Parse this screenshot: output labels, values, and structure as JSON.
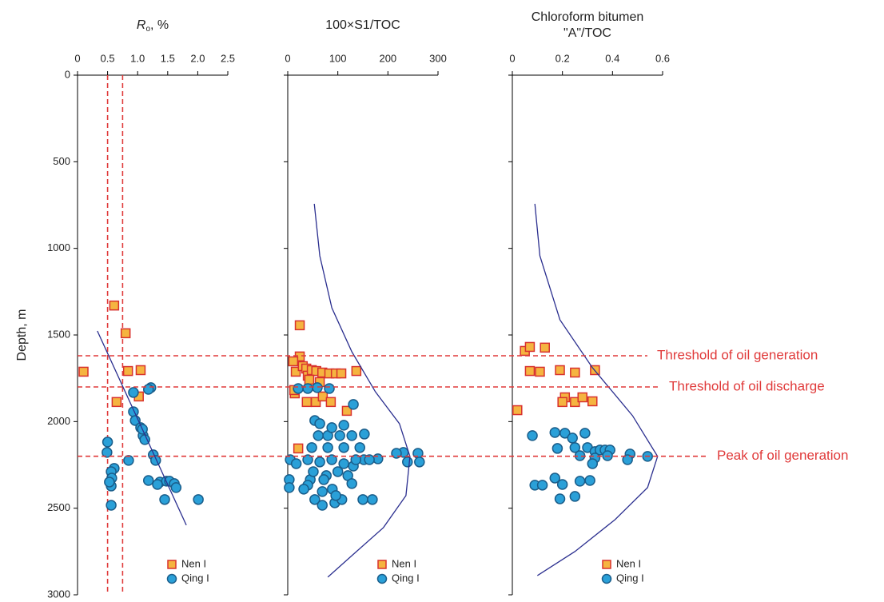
{
  "chart_data": [
    {
      "type": "scatter",
      "title": {
        "symbol": "R",
        "subscript": "o",
        "text": ", %"
      },
      "ylabel": "Depth, m",
      "show_ytick_labels": true,
      "xlim": [
        0,
        2.5
      ],
      "xticks": [
        0,
        0.5,
        {
          "value": 1,
          "label": "1.0"
        },
        1.5,
        {
          "value": 2,
          "label": "2.0"
        },
        2.5
      ],
      "ylim": [
        0,
        3000
      ],
      "yticks": [
        0,
        500,
        1000,
        1500,
        2000,
        2500,
        3000
      ],
      "y_inverted": true,
      "vlines": [
        0.5,
        0.75
      ],
      "series": [
        {
          "name": "Nen I",
          "style": "square",
          "color": "#f5b440",
          "edge": "#d8312d",
          "x": [
            0.61,
            0.8,
            0.1,
            0.84,
            1.05,
            0.65,
            1.02
          ],
          "values": [
            1330,
            1490,
            1712,
            1708,
            1703,
            1887,
            1855
          ]
        },
        {
          "name": "Qing I",
          "style": "circle",
          "color": "#2aa0d8",
          "edge": "#1a5d8a",
          "x": [
            0.93,
            1.22,
            1.18,
            0.93,
            0.96,
            1.05,
            1.09,
            1.12,
            1.08,
            0.5,
            0.49,
            1.26,
            1.3,
            0.85,
            0.61,
            0.56,
            0.57,
            0.56,
            0.53,
            1.18,
            1.37,
            1.48,
            1.53,
            1.61,
            1.64,
            1.33,
            1.45,
            2.01,
            0.56
          ],
          "values": [
            1832,
            1804,
            1814,
            1943,
            1994,
            2035,
            2081,
            2104,
            2044,
            2118,
            2178,
            2192,
            2224,
            2224,
            2270,
            2289,
            2326,
            2372,
            2349,
            2340,
            2349,
            2344,
            2344,
            2358,
            2381,
            2363,
            2450,
            2450,
            2483
          ]
        },
        {
          "style": "line",
          "color": "#2b2f8f",
          "x": [
            0.33,
            1.81
          ],
          "values": [
            1477,
            2598
          ]
        }
      ]
    },
    {
      "type": "scatter",
      "title": "100×S1/TOC",
      "show_ytick_labels": false,
      "xlim": [
        0,
        300
      ],
      "xticks": [
        0,
        100,
        200,
        300
      ],
      "ylim": [
        0,
        3000
      ],
      "yticks": [
        0,
        500,
        1000,
        1500,
        2000,
        2500,
        3000
      ],
      "y_inverted": true,
      "series": [
        {
          "name": "Nen I",
          "style": "square",
          "color": "#f5b440",
          "edge": "#d8312d",
          "x": [
            24,
            24,
            11,
            16,
            30,
            37,
            40,
            48,
            57,
            69,
            83,
            96,
            107,
            137,
            14,
            43,
            64,
            21,
            38,
            56,
            70,
            86,
            118,
            13
          ],
          "values": [
            1444,
            1624,
            1652,
            1712,
            1680,
            1694,
            1735,
            1703,
            1708,
            1717,
            1722,
            1722,
            1722,
            1708,
            1837,
            1758,
            1772,
            2155,
            1887,
            1887,
            1855,
            1887,
            1938,
            1818
          ]
        },
        {
          "name": "Qing I",
          "style": "circle",
          "color": "#2aa0d8",
          "edge": "#1a5d8a",
          "x": [
            21,
            40,
            59,
            83,
            131,
            54,
            153,
            231,
            217,
            260,
            263,
            239,
            180,
            5,
            3,
            3,
            17,
            45,
            69,
            54,
            94,
            69,
            89,
            108,
            150,
            169,
            152,
            131,
            120,
            61,
            80,
            104,
            128,
            48,
            80,
            112,
            144,
            40,
            64,
            88,
            112,
            51,
            77,
            100,
            40,
            128,
            72,
            32,
            96,
            136,
            163,
            64,
            88,
            112
          ],
          "values": [
            1809,
            1809,
            1804,
            1809,
            1901,
            1994,
            2072,
            2178,
            2183,
            2183,
            2233,
            2233,
            2215,
            2220,
            2335,
            2381,
            2243,
            2335,
            2404,
            2450,
            2469,
            2483,
            2390,
            2450,
            2450,
            2450,
            2220,
            2257,
            2312,
            2081,
            2081,
            2081,
            2081,
            2150,
            2150,
            2150,
            2150,
            2220,
            2233,
            2220,
            2243,
            2289,
            2312,
            2289,
            2367,
            2358,
            2335,
            2390,
            2427,
            2220,
            2220,
            2012,
            2035,
            2021
          ]
        },
        {
          "style": "line",
          "color": "#2b2f8f",
          "x": [
            53,
            64,
            88,
            128,
            175,
            223,
            244,
            236,
            191,
            128,
            80
          ],
          "values": [
            743,
            1043,
            1343,
            1597,
            1828,
            2012,
            2201,
            2427,
            2612,
            2774,
            2898
          ]
        }
      ]
    },
    {
      "type": "scatter",
      "title": [
        "Chloroform bitumen",
        "\"A\"/TOC"
      ],
      "show_ytick_labels": false,
      "xlim": [
        0,
        0.6
      ],
      "xticks": [
        0,
        0.2,
        0.4,
        0.6
      ],
      "ylim": [
        0,
        3000
      ],
      "yticks": [
        0,
        500,
        1000,
        1500,
        2000,
        2500,
        3000
      ],
      "y_inverted": true,
      "series": [
        {
          "name": "Nen I",
          "style": "square",
          "color": "#f5b440",
          "edge": "#d8312d",
          "x": [
            0.05,
            0.07,
            0.13,
            0.07,
            0.11,
            0.19,
            0.25,
            0.33,
            0.02,
            0.21,
            0.2,
            0.25,
            0.28,
            0.32
          ],
          "values": [
            1592,
            1569,
            1573,
            1708,
            1712,
            1703,
            1717,
            1703,
            1934,
            1860,
            1887,
            1887,
            1860,
            1883
          ]
        },
        {
          "name": "Qing I",
          "style": "circle",
          "color": "#2aa0d8",
          "edge": "#1a5d8a",
          "x": [
            0.08,
            0.17,
            0.21,
            0.24,
            0.29,
            0.18,
            0.25,
            0.3,
            0.33,
            0.35,
            0.37,
            0.39,
            0.38,
            0.33,
            0.27,
            0.32,
            0.47,
            0.46,
            0.54,
            0.17,
            0.09,
            0.12,
            0.2,
            0.19,
            0.25,
            0.27,
            0.31
          ],
          "values": [
            2081,
            2063,
            2067,
            2095,
            2067,
            2155,
            2150,
            2150,
            2173,
            2164,
            2164,
            2164,
            2197,
            2210,
            2197,
            2243,
            2187,
            2220,
            2201,
            2326,
            2367,
            2367,
            2363,
            2446,
            2432,
            2344,
            2340
          ]
        },
        {
          "style": "line",
          "color": "#2b2f8f",
          "x": [
            0.09,
            0.11,
            0.19,
            0.32,
            0.48,
            0.58,
            0.54,
            0.41,
            0.25,
            0.1
          ],
          "values": [
            743,
            1043,
            1412,
            1689,
            1966,
            2201,
            2381,
            2566,
            2750,
            2889
          ]
        }
      ]
    }
  ],
  "reference_lines": [
    {
      "value": 1620,
      "label": "Threshold of oil generation"
    },
    {
      "value": 1800,
      "label": "Threshold of oil discharge"
    },
    {
      "value": 2200,
      "label": "Peak of oil generation"
    }
  ],
  "reference_color": "#e03a3a"
}
